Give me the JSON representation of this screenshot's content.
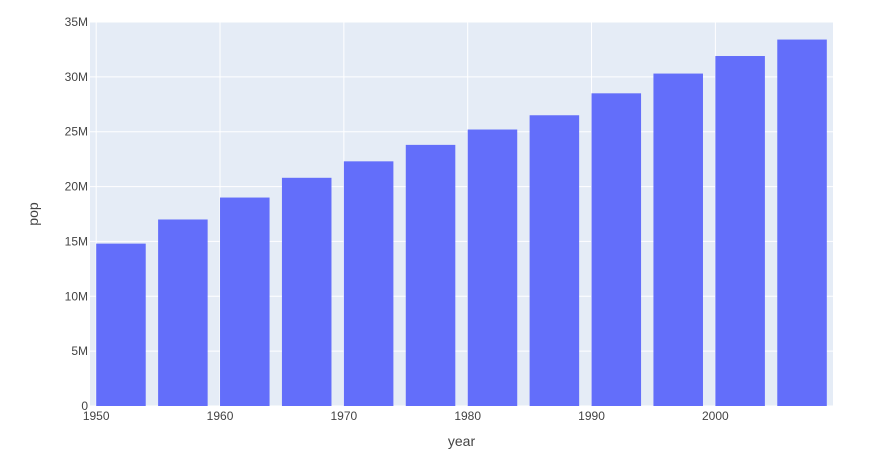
{
  "chart_data": {
    "type": "bar",
    "xlabel": "year",
    "ylabel": "pop",
    "x": [
      1952,
      1957,
      1962,
      1967,
      1972,
      1977,
      1982,
      1987,
      1992,
      1997,
      2002,
      2007
    ],
    "values": [
      14800000,
      17000000,
      19000000,
      20800000,
      22300000,
      23800000,
      25200000,
      26500000,
      28500000,
      30300000,
      31900000,
      33400000
    ],
    "xlim": [
      1949.5,
      2009.5
    ],
    "ylim": [
      0,
      35000000
    ],
    "x_ticks": [
      {
        "value": 1950,
        "label": "1950"
      },
      {
        "value": 1960,
        "label": "1960"
      },
      {
        "value": 1970,
        "label": "1970"
      },
      {
        "value": 1980,
        "label": "1980"
      },
      {
        "value": 1990,
        "label": "1990"
      },
      {
        "value": 2000,
        "label": "2000"
      }
    ],
    "y_ticks": [
      {
        "value": 0,
        "label": "0"
      },
      {
        "value": 5000000,
        "label": "5M"
      },
      {
        "value": 10000000,
        "label": "10M"
      },
      {
        "value": 15000000,
        "label": "15M"
      },
      {
        "value": 20000000,
        "label": "20M"
      },
      {
        "value": 25000000,
        "label": "25M"
      },
      {
        "value": 30000000,
        "label": "30M"
      },
      {
        "value": 35000000,
        "label": "35M"
      }
    ],
    "grid": true,
    "colors": {
      "bar": "#636efa",
      "plot_background": "#e5ecf6",
      "grid": "#ffffff"
    }
  }
}
